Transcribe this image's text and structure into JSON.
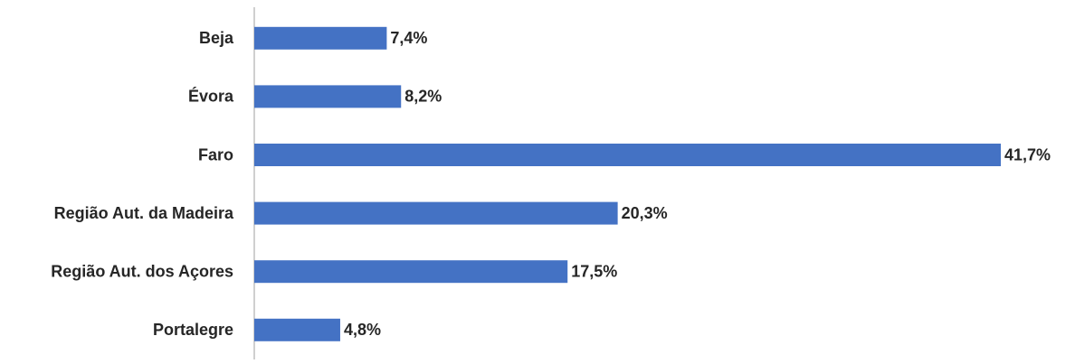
{
  "chart_data": {
    "type": "barh",
    "categories": [
      "Beja",
      "Évora",
      "Faro",
      "Região Aut. da Madeira",
      "Região Aut. dos Açores",
      "Portalegre"
    ],
    "values": [
      7.4,
      8.2,
      41.7,
      20.3,
      17.5,
      4.8
    ],
    "value_labels": [
      "7,4%",
      "8,2%",
      "41,7%",
      "20,3%",
      "17,5%",
      "4,8%"
    ],
    "color": "#4472c4"
  }
}
